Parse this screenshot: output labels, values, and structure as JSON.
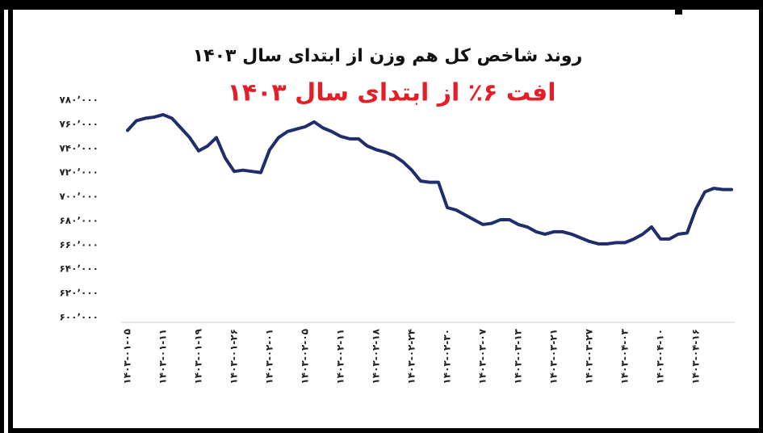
{
  "chart_data": {
    "type": "line",
    "title": "روند شاخص کل هم وزن از ابتدای سال ۱۴۰۳",
    "subtitle": "افت ۶٪ از ابتدای سال ۱۴۰۳",
    "categories": [
      "۱۴۰۳-۰۱-۰۵",
      null,
      null,
      null,
      "۱۴۰۳-۰۱-۱۱",
      null,
      null,
      null,
      "۱۴۰۳-۰۱-۱۹",
      null,
      null,
      null,
      "۱۴۰۳-۰۱-۲۶",
      null,
      null,
      null,
      "۱۴۰۳-۰۲-۰۱",
      null,
      null,
      null,
      "۱۴۰۳-۰۲-۰۵",
      null,
      null,
      null,
      "۱۴۰۳-۰۲-۱۱",
      null,
      null,
      null,
      "۱۴۰۳-۰۲-۱۸",
      null,
      null,
      null,
      "۱۴۰۳-۰۲-۲۴",
      null,
      null,
      null,
      "۱۴۰۳-۰۲-۳۰",
      null,
      null,
      null,
      "۱۴۰۳-۰۳-۰۷",
      null,
      null,
      null,
      "۱۴۰۳-۰۳-۱۳",
      null,
      null,
      null,
      "۱۴۰۳-۰۳-۲۱",
      null,
      null,
      null,
      "۱۴۰۳-۰۳-۲۷",
      null,
      null,
      null,
      "۱۴۰۳-۰۴-۰۳",
      null,
      null,
      null,
      "۱۴۰۳-۰۴-۱۰",
      null,
      null,
      null,
      "۱۴۰۳-۰۴-۱۶",
      null,
      null,
      null,
      null
    ],
    "series": [
      {
        "color": "#1f2d6b",
        "values": [
          755000,
          763000,
          765000,
          766000,
          768000,
          765000,
          757000,
          749000,
          738000,
          742000,
          749000,
          732000,
          721000,
          722000,
          721000,
          720000,
          739000,
          749000,
          754000,
          756000,
          758000,
          762000,
          757000,
          754000,
          750000,
          748000,
          748000,
          742000,
          739000,
          737000,
          734000,
          729000,
          722000,
          713000,
          712000,
          712000,
          691000,
          689000,
          685000,
          681000,
          677000,
          678000,
          681000,
          681000,
          677000,
          675000,
          671000,
          669000,
          671000,
          671000,
          669000,
          666000,
          663000,
          661000,
          661000,
          662000,
          662000,
          665000,
          669000,
          675000,
          665000,
          665000,
          669000,
          670000,
          690000,
          704000,
          707000,
          706000,
          706000
        ]
      }
    ],
    "ylim": [
      600000,
      780000
    ],
    "yticks": [
      {
        "value": 600000,
        "label": "۶۰۰٬۰۰۰"
      },
      {
        "value": 620000,
        "label": "۶۲۰٬۰۰۰"
      },
      {
        "value": 640000,
        "label": "۶۴۰٬۰۰۰"
      },
      {
        "value": 660000,
        "label": "۶۶۰٬۰۰۰"
      },
      {
        "value": 680000,
        "label": "۶۸۰٬۰۰۰"
      },
      {
        "value": 700000,
        "label": "۷۰۰٬۰۰۰"
      },
      {
        "value": 720000,
        "label": "۷۲۰٬۰۰۰"
      },
      {
        "value": 740000,
        "label": "۷۴۰٬۰۰۰"
      },
      {
        "value": 760000,
        "label": "۷۶۰٬۰۰۰"
      },
      {
        "value": 780000,
        "label": "۷۸۰٬۰۰۰"
      }
    ]
  }
}
